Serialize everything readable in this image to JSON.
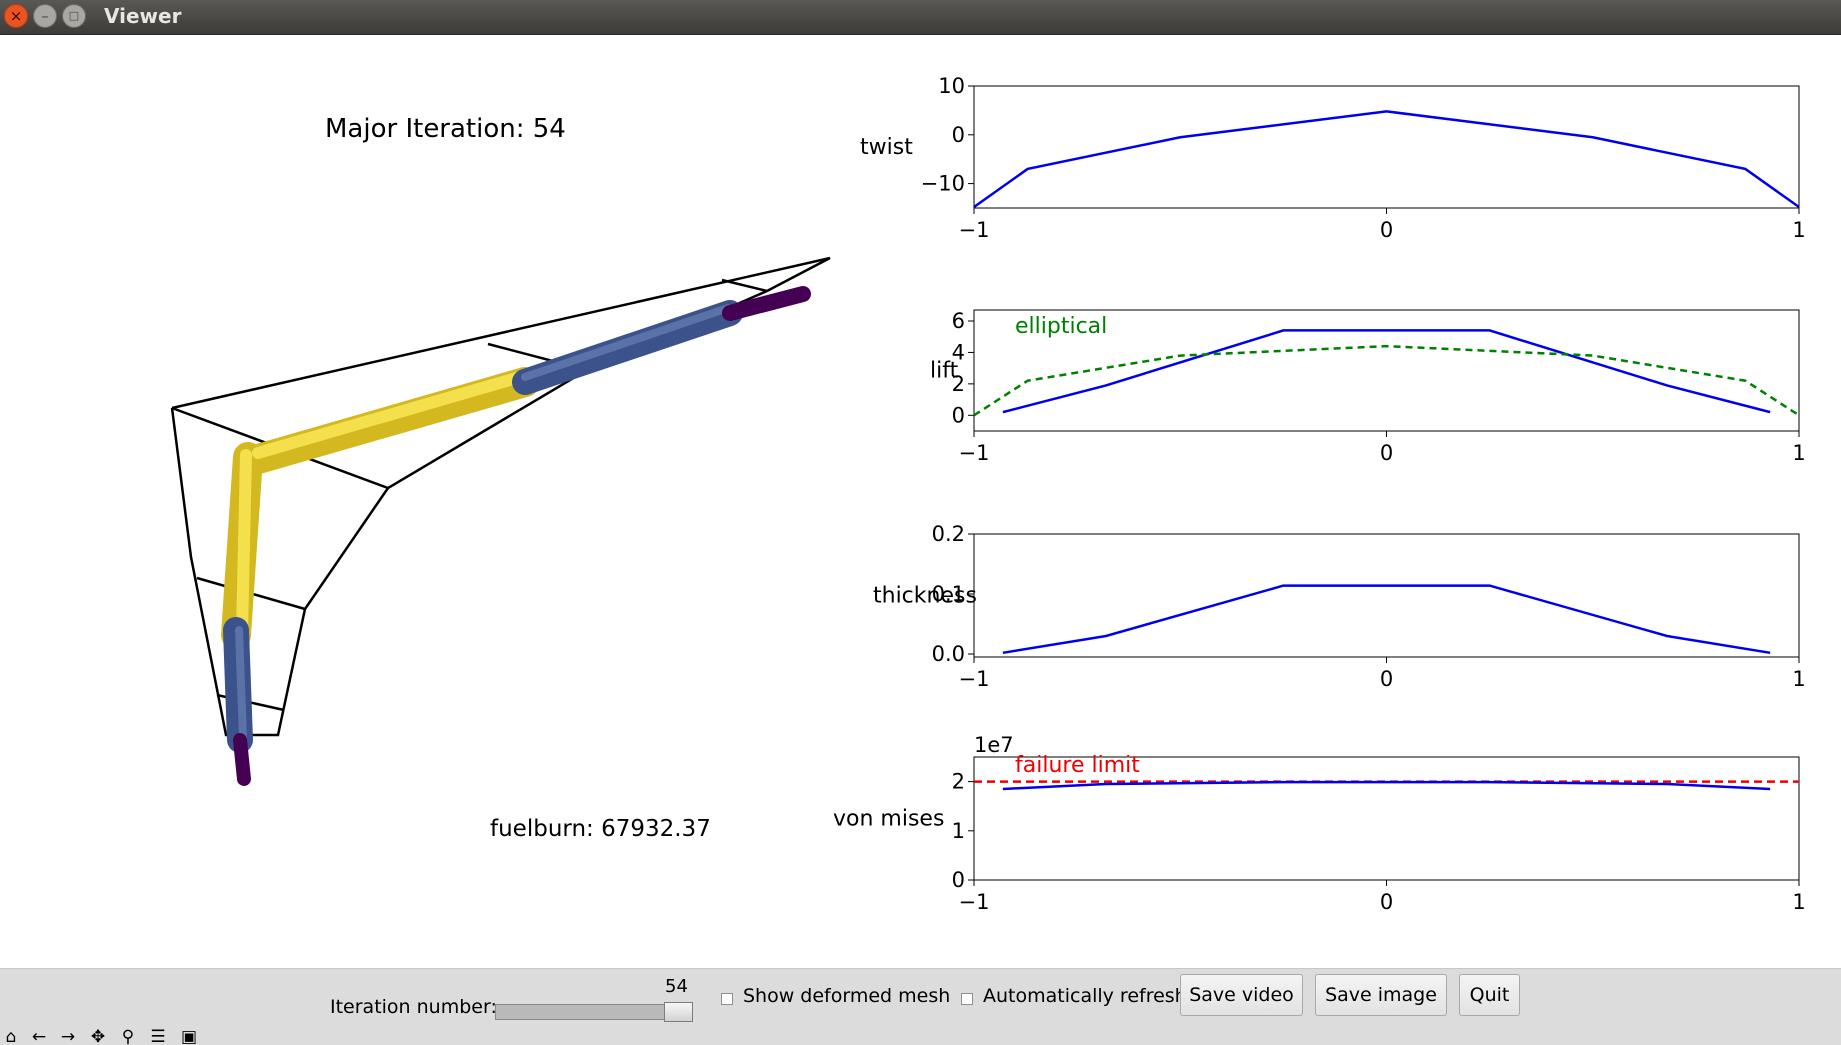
{
  "window": {
    "title": "Viewer"
  },
  "main": {
    "major_iteration": "Major Iteration: 54",
    "fuelburn": "fuelburn: 67932.37"
  },
  "colors": {
    "series": "#0000ee",
    "elliptical": "#008000",
    "failure_limit": "#ee0000",
    "spar_yellow": "#f2d22e",
    "spar_blue": "#3b528b",
    "spar_purple": "#440154",
    "titlebar": "#4a4946",
    "close_button": "#e95420"
  },
  "chart_data": [
    {
      "type": "line",
      "ylabel": "twist",
      "xlim": [
        -1,
        1
      ],
      "ylim": [
        -15,
        10
      ],
      "xticks": [
        "−1",
        "0",
        "1"
      ],
      "yticks": [
        {
          "v": 10,
          "t": "10"
        },
        {
          "v": 0,
          "t": "0"
        },
        {
          "v": -10,
          "t": "−10"
        }
      ],
      "series": [
        {
          "x": [
            -1,
            -0.87,
            -0.5,
            0,
            0.5,
            0.87,
            1
          ],
          "y": [
            -14.8,
            -7,
            -0.5,
            4.8,
            -0.5,
            -7,
            -14.8
          ]
        }
      ]
    },
    {
      "type": "line",
      "ylabel": "lift",
      "xlim": [
        -1,
        1
      ],
      "ylim": [
        -1,
        6.7
      ],
      "xticks": [
        "−1",
        "0",
        "1"
      ],
      "yticks": [
        {
          "v": 6,
          "t": "6"
        },
        {
          "v": 4,
          "t": "4"
        },
        {
          "v": 2,
          "t": "2"
        },
        {
          "v": 0,
          "t": "0"
        }
      ],
      "annotation": "elliptical",
      "series": [
        {
          "x": [
            -0.93,
            -0.68,
            -0.25,
            0.25,
            0.68,
            0.93
          ],
          "y": [
            0.2,
            1.9,
            5.4,
            5.4,
            1.9,
            0.2
          ]
        },
        {
          "x": [
            -1,
            -0.87,
            -0.5,
            0,
            0.5,
            0.87,
            1
          ],
          "y": [
            0,
            2.2,
            3.8,
            4.4,
            3.8,
            2.2,
            0
          ],
          "style": "dashed"
        }
      ]
    },
    {
      "type": "line",
      "ylabel": "thickness",
      "xlim": [
        -1,
        1
      ],
      "ylim": [
        -0.005,
        0.2
      ],
      "xticks": [
        "−1",
        "0",
        "1"
      ],
      "yticks": [
        {
          "v": 0.2,
          "t": "0.2"
        },
        {
          "v": 0.1,
          "t": "0.1"
        },
        {
          "v": 0.0,
          "t": "0.0"
        }
      ],
      "series": [
        {
          "x": [
            -0.93,
            -0.68,
            -0.25,
            0.25,
            0.68,
            0.93
          ],
          "y": [
            0.002,
            0.03,
            0.114,
            0.114,
            0.03,
            0.002
          ]
        }
      ]
    },
    {
      "type": "line",
      "ylabel": "von mises",
      "xlim": [
        -1,
        1
      ],
      "ylim": [
        0,
        2.5
      ],
      "xticks": [
        "−1",
        "0",
        "1"
      ],
      "yticks": [
        {
          "v": 2,
          "t": "2"
        },
        {
          "v": 1,
          "t": "1"
        },
        {
          "v": 0,
          "t": "0"
        }
      ],
      "offset_text": "1e7",
      "annotation": "failure limit",
      "hline": 2.0,
      "series": [
        {
          "x": [
            -0.93,
            -0.68,
            -0.25,
            0.25,
            0.68,
            0.93
          ],
          "y": [
            1.85,
            1.95,
            1.99,
            1.99,
            1.95,
            1.85
          ]
        }
      ]
    }
  ],
  "controls": {
    "iteration_label": "Iteration number:",
    "iteration_value": "54",
    "iteration_fraction": 1.0,
    "show_deformed_label": "Show deformed mesh",
    "auto_refresh_label": "Automatically refresh",
    "save_video": "Save video",
    "save_image": "Save image",
    "quit": "Quit"
  },
  "toolbar_icons": [
    "home-icon",
    "back-arrow-icon",
    "forward-arrow-icon",
    "pan-icon",
    "zoom-icon",
    "configure-subplots-icon",
    "save-icon"
  ]
}
